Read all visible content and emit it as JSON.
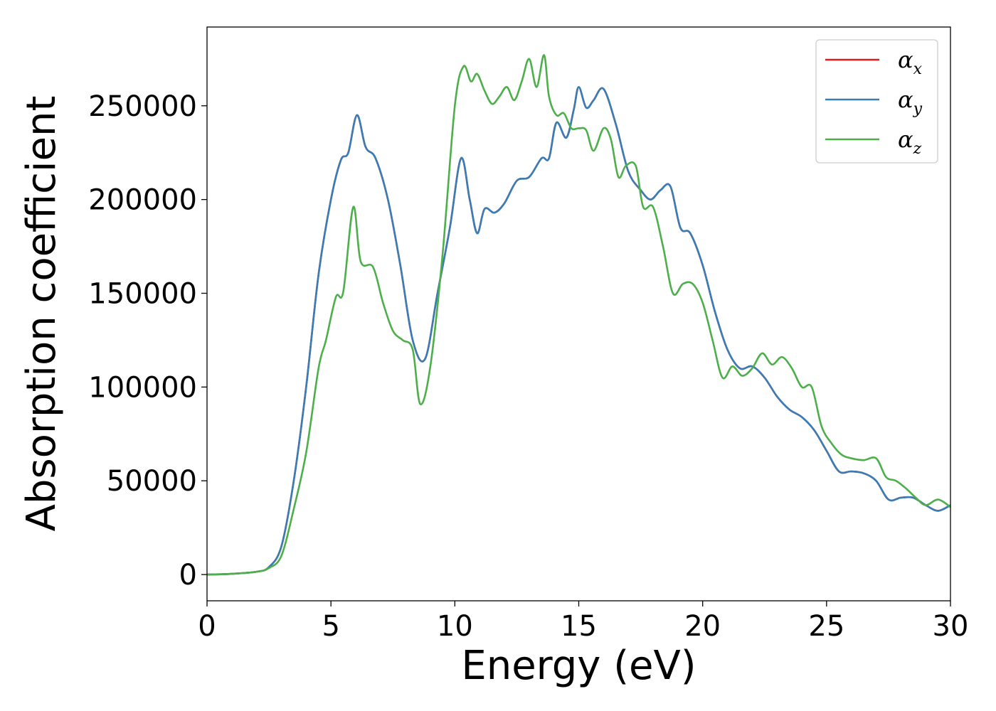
{
  "chart_data": {
    "type": "line",
    "title": "",
    "xlabel": "Energy (eV)",
    "ylabel": "Absorption coefficient",
    "xlim": [
      0,
      30
    ],
    "ylim": [
      -14000,
      292000
    ],
    "grid": false,
    "legend_position": "top-right",
    "x_ticks": [
      0,
      5,
      10,
      15,
      20,
      25,
      30
    ],
    "x_tick_labels": [
      "0",
      "5",
      "10",
      "15",
      "20",
      "25",
      "30"
    ],
    "y_ticks": [
      0,
      50000,
      100000,
      150000,
      200000,
      250000
    ],
    "y_tick_labels": [
      "0",
      "50000",
      "100000",
      "150000",
      "200000",
      "250000"
    ],
    "series": [
      {
        "name": "αx",
        "legend_base": "α",
        "legend_sub": "x",
        "color": "#e41a1c",
        "x": [
          0,
          1,
          2,
          2.5,
          3,
          3.5,
          4,
          4.5,
          5,
          5.4,
          5.7,
          6.05,
          6.4,
          6.8,
          7.3,
          7.8,
          8.3,
          8.8,
          9.3,
          9.8,
          10.25,
          10.6,
          10.9,
          11.2,
          11.6,
          12.0,
          12.5,
          13.0,
          13.5,
          13.8,
          14.1,
          14.5,
          14.8,
          15.0,
          15.3,
          15.6,
          16.0,
          16.5,
          17.0,
          17.5,
          17.9,
          18.3,
          18.7,
          19.1,
          19.5,
          20.0,
          20.5,
          21.0,
          21.5,
          22.0,
          22.5,
          23.0,
          23.5,
          24.0,
          24.5,
          25.0,
          25.5,
          26.0,
          26.5,
          27.0,
          27.5,
          28.0,
          28.5,
          29.0,
          29.5,
          30.0
        ],
        "y": [
          0,
          400,
          1500,
          4000,
          15000,
          50000,
          100000,
          160000,
          200000,
          221000,
          225000,
          245000,
          228000,
          222000,
          200000,
          165000,
          125000,
          115000,
          150000,
          185000,
          222000,
          200000,
          182000,
          195000,
          193000,
          198000,
          210000,
          212000,
          222000,
          222000,
          241000,
          233000,
          248000,
          260000,
          249000,
          253000,
          259000,
          240000,
          215000,
          205000,
          200000,
          205000,
          207000,
          185000,
          182000,
          165000,
          140000,
          120000,
          110000,
          111000,
          105000,
          95000,
          88000,
          84000,
          77000,
          66000,
          55000,
          55000,
          54000,
          50000,
          40000,
          41000,
          41000,
          37000,
          34000,
          37000
        ]
      },
      {
        "name": "αy",
        "legend_base": "α",
        "legend_sub": "y",
        "color": "#377eb8",
        "x": [
          0,
          1,
          2,
          2.5,
          3,
          3.5,
          4,
          4.5,
          5,
          5.4,
          5.7,
          6.05,
          6.4,
          6.8,
          7.3,
          7.8,
          8.3,
          8.8,
          9.3,
          9.8,
          10.25,
          10.6,
          10.9,
          11.2,
          11.6,
          12.0,
          12.5,
          13.0,
          13.5,
          13.8,
          14.1,
          14.5,
          14.8,
          15.0,
          15.3,
          15.6,
          16.0,
          16.5,
          17.0,
          17.5,
          17.9,
          18.3,
          18.7,
          19.1,
          19.5,
          20.0,
          20.5,
          21.0,
          21.5,
          22.0,
          22.5,
          23.0,
          23.5,
          24.0,
          24.5,
          25.0,
          25.5,
          26.0,
          26.5,
          27.0,
          27.5,
          28.0,
          28.5,
          29.0,
          29.5,
          30.0
        ],
        "y": [
          0,
          400,
          1500,
          4000,
          15000,
          50000,
          100000,
          160000,
          200000,
          221000,
          225000,
          245000,
          228000,
          222000,
          200000,
          165000,
          125000,
          115000,
          150000,
          185000,
          222000,
          200000,
          182000,
          195000,
          193000,
          198000,
          210000,
          212000,
          222000,
          222000,
          241000,
          233000,
          248000,
          260000,
          249000,
          253000,
          259000,
          240000,
          215000,
          205000,
          200000,
          205000,
          207000,
          185000,
          182000,
          165000,
          140000,
          120000,
          110000,
          111000,
          105000,
          95000,
          88000,
          84000,
          77000,
          66000,
          55000,
          55000,
          54000,
          50000,
          40000,
          41000,
          41000,
          37000,
          34000,
          37000
        ]
      },
      {
        "name": "αz",
        "legend_base": "α",
        "legend_sub": "z",
        "color": "#4daf4a",
        "x": [
          0,
          1,
          2,
          2.5,
          3,
          3.5,
          4,
          4.5,
          4.8,
          5.2,
          5.5,
          5.9,
          6.2,
          6.7,
          7.1,
          7.5,
          7.9,
          8.3,
          8.6,
          9.0,
          9.5,
          10.0,
          10.35,
          10.65,
          10.9,
          11.2,
          11.5,
          11.8,
          12.1,
          12.4,
          12.7,
          13.0,
          13.3,
          13.6,
          13.8,
          14.1,
          14.4,
          14.7,
          15.0,
          15.3,
          15.6,
          16.0,
          16.3,
          16.6,
          16.9,
          17.3,
          17.6,
          18.0,
          18.4,
          18.8,
          19.2,
          19.6,
          20.0,
          20.4,
          20.8,
          21.2,
          21.6,
          22.0,
          22.4,
          22.8,
          23.2,
          23.6,
          24.0,
          24.4,
          24.8,
          25.2,
          25.6,
          26.0,
          26.5,
          27.0,
          27.4,
          27.8,
          28.2,
          28.6,
          29.0,
          29.5,
          30.0
        ],
        "y": [
          0,
          400,
          1500,
          3500,
          10000,
          35000,
          65000,
          110000,
          125000,
          148000,
          151000,
          196000,
          167000,
          164000,
          145000,
          130000,
          125000,
          120000,
          91000,
          110000,
          170000,
          250000,
          271000,
          263000,
          267000,
          258000,
          251000,
          255000,
          260000,
          253000,
          263000,
          275000,
          260000,
          277000,
          255000,
          245000,
          246000,
          238000,
          238000,
          237000,
          226000,
          238000,
          232000,
          212000,
          218000,
          218000,
          196000,
          196000,
          175000,
          150000,
          155000,
          155000,
          145000,
          125000,
          105000,
          111000,
          106000,
          110000,
          118000,
          112000,
          116000,
          110000,
          100000,
          100000,
          79000,
          70000,
          64000,
          62000,
          61000,
          62000,
          52000,
          50000,
          46000,
          41000,
          37000,
          40000,
          36000
        ]
      }
    ]
  }
}
